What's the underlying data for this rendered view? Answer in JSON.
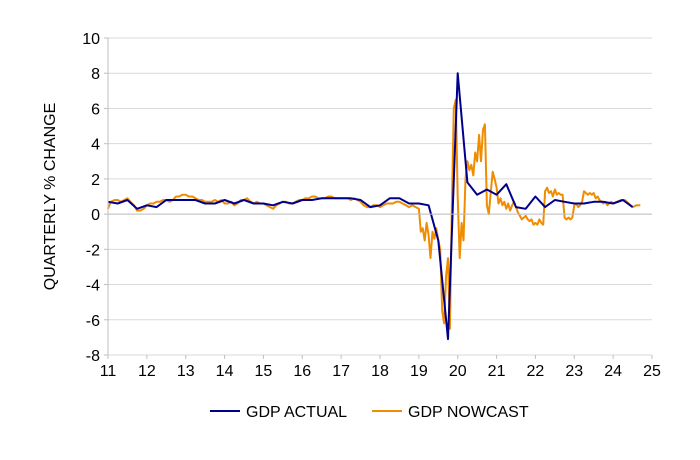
{
  "chart_data": {
    "type": "line",
    "title": "",
    "xlabel": "",
    "ylabel": "QUARTERLY % CHANGE",
    "xlim": [
      11,
      25
    ],
    "ylim": [
      -8,
      10
    ],
    "xticks": [
      11,
      12,
      13,
      14,
      15,
      16,
      17,
      18,
      19,
      20,
      21,
      22,
      23,
      24,
      25
    ],
    "yticks": [
      -8,
      -6,
      -4,
      -2,
      0,
      2,
      4,
      6,
      8,
      10
    ],
    "xtick_labels": [
      "11",
      "12",
      "13",
      "14",
      "15",
      "16",
      "17",
      "18",
      "19",
      "20",
      "21",
      "22",
      "23",
      "24",
      "25"
    ],
    "ytick_labels": [
      "-8",
      "-6",
      "-4",
      "-2",
      "0",
      "2",
      "4",
      "6",
      "8",
      "10"
    ],
    "grid": "horizontal",
    "legend_position": "bottom",
    "series": [
      {
        "name": "GDP ACTUAL",
        "color": "#00008b",
        "points": [
          [
            11.0,
            0.7
          ],
          [
            11.25,
            0.6
          ],
          [
            11.5,
            0.8
          ],
          [
            11.75,
            0.3
          ],
          [
            12.0,
            0.5
          ],
          [
            12.25,
            0.4
          ],
          [
            12.5,
            0.8
          ],
          [
            12.75,
            0.8
          ],
          [
            13.0,
            0.8
          ],
          [
            13.25,
            0.8
          ],
          [
            13.5,
            0.6
          ],
          [
            13.75,
            0.6
          ],
          [
            14.0,
            0.8
          ],
          [
            14.25,
            0.6
          ],
          [
            14.5,
            0.8
          ],
          [
            14.75,
            0.6
          ],
          [
            15.0,
            0.6
          ],
          [
            15.25,
            0.5
          ],
          [
            15.5,
            0.7
          ],
          [
            15.75,
            0.6
          ],
          [
            16.0,
            0.8
          ],
          [
            16.25,
            0.8
          ],
          [
            16.5,
            0.9
          ],
          [
            16.75,
            0.9
          ],
          [
            17.0,
            0.9
          ],
          [
            17.25,
            0.9
          ],
          [
            17.5,
            0.8
          ],
          [
            17.75,
            0.4
          ],
          [
            18.0,
            0.5
          ],
          [
            18.25,
            0.9
          ],
          [
            18.5,
            0.9
          ],
          [
            18.75,
            0.6
          ],
          [
            19.0,
            0.6
          ],
          [
            19.25,
            0.5
          ],
          [
            19.5,
            -1.5
          ],
          [
            19.75,
            -7.1
          ],
          [
            20.0,
            8.0
          ],
          [
            20.25,
            1.8
          ],
          [
            20.5,
            1.1
          ],
          [
            20.75,
            1.4
          ],
          [
            21.0,
            1.1
          ],
          [
            21.25,
            1.7
          ],
          [
            21.5,
            0.4
          ],
          [
            21.75,
            0.3
          ],
          [
            22.0,
            1.0
          ],
          [
            22.25,
            0.4
          ],
          [
            22.5,
            0.8
          ],
          [
            22.75,
            0.7
          ],
          [
            23.0,
            0.6
          ],
          [
            23.25,
            0.6
          ],
          [
            23.5,
            0.7
          ],
          [
            23.75,
            0.7
          ],
          [
            24.0,
            0.6
          ],
          [
            24.25,
            0.8
          ],
          [
            24.5,
            0.4
          ]
        ]
      },
      {
        "name": "GDP NOWCAST",
        "color": "#f08c00",
        "points": [
          [
            11.0,
            0.3
          ],
          [
            11.07,
            0.7
          ],
          [
            11.17,
            0.8
          ],
          [
            11.25,
            0.8
          ],
          [
            11.33,
            0.7
          ],
          [
            11.42,
            0.8
          ],
          [
            11.5,
            0.9
          ],
          [
            11.58,
            0.7
          ],
          [
            11.67,
            0.5
          ],
          [
            11.75,
            0.2
          ],
          [
            11.83,
            0.2
          ],
          [
            11.92,
            0.3
          ],
          [
            12.0,
            0.5
          ],
          [
            12.08,
            0.6
          ],
          [
            12.17,
            0.6
          ],
          [
            12.25,
            0.7
          ],
          [
            12.33,
            0.7
          ],
          [
            12.42,
            0.8
          ],
          [
            12.5,
            0.8
          ],
          [
            12.58,
            0.7
          ],
          [
            12.67,
            0.8
          ],
          [
            12.75,
            1.0
          ],
          [
            12.83,
            1.0
          ],
          [
            12.92,
            1.1
          ],
          [
            13.0,
            1.1
          ],
          [
            13.08,
            1.0
          ],
          [
            13.17,
            1.0
          ],
          [
            13.25,
            0.9
          ],
          [
            13.33,
            0.8
          ],
          [
            13.42,
            0.8
          ],
          [
            13.5,
            0.7
          ],
          [
            13.58,
            0.7
          ],
          [
            13.67,
            0.7
          ],
          [
            13.75,
            0.8
          ],
          [
            13.83,
            0.7
          ],
          [
            13.92,
            0.8
          ],
          [
            14.0,
            0.6
          ],
          [
            14.08,
            0.6
          ],
          [
            14.17,
            0.7
          ],
          [
            14.25,
            0.5
          ],
          [
            14.33,
            0.6
          ],
          [
            14.42,
            0.8
          ],
          [
            14.5,
            0.8
          ],
          [
            14.58,
            0.9
          ],
          [
            14.67,
            0.7
          ],
          [
            14.75,
            0.6
          ],
          [
            14.83,
            0.7
          ],
          [
            14.92,
            0.6
          ],
          [
            15.0,
            0.6
          ],
          [
            15.08,
            0.5
          ],
          [
            15.17,
            0.4
          ],
          [
            15.25,
            0.3
          ],
          [
            15.33,
            0.5
          ],
          [
            15.42,
            0.6
          ],
          [
            15.5,
            0.7
          ],
          [
            15.58,
            0.7
          ],
          [
            15.67,
            0.6
          ],
          [
            15.75,
            0.6
          ],
          [
            15.83,
            0.7
          ],
          [
            15.92,
            0.8
          ],
          [
            16.0,
            0.8
          ],
          [
            16.08,
            0.9
          ],
          [
            16.17,
            0.9
          ],
          [
            16.25,
            1.0
          ],
          [
            16.33,
            1.0
          ],
          [
            16.42,
            0.9
          ],
          [
            16.5,
            0.9
          ],
          [
            16.58,
            0.9
          ],
          [
            16.67,
            1.0
          ],
          [
            16.75,
            1.0
          ],
          [
            16.83,
            0.9
          ],
          [
            16.92,
            0.9
          ],
          [
            17.0,
            0.9
          ],
          [
            17.08,
            0.9
          ],
          [
            17.17,
            0.9
          ],
          [
            17.25,
            0.8
          ],
          [
            17.33,
            0.9
          ],
          [
            17.42,
            0.8
          ],
          [
            17.5,
            0.7
          ],
          [
            17.58,
            0.5
          ],
          [
            17.67,
            0.4
          ],
          [
            17.75,
            0.4
          ],
          [
            17.83,
            0.5
          ],
          [
            17.92,
            0.5
          ],
          [
            18.0,
            0.4
          ],
          [
            18.08,
            0.5
          ],
          [
            18.17,
            0.6
          ],
          [
            18.25,
            0.6
          ],
          [
            18.33,
            0.6
          ],
          [
            18.42,
            0.7
          ],
          [
            18.5,
            0.7
          ],
          [
            18.58,
            0.6
          ],
          [
            18.67,
            0.5
          ],
          [
            18.75,
            0.4
          ],
          [
            18.83,
            0.5
          ],
          [
            18.92,
            0.4
          ],
          [
            19.0,
            0.3
          ],
          [
            19.05,
            -1.0
          ],
          [
            19.1,
            -0.8
          ],
          [
            19.15,
            -1.5
          ],
          [
            19.2,
            -0.5
          ],
          [
            19.25,
            -1.2
          ],
          [
            19.3,
            -2.5
          ],
          [
            19.35,
            -1.0
          ],
          [
            19.4,
            -1.4
          ],
          [
            19.45,
            -0.8
          ],
          [
            19.5,
            -1.5
          ],
          [
            19.55,
            -2.0
          ],
          [
            19.6,
            -5.5
          ],
          [
            19.65,
            -6.2
          ],
          [
            19.7,
            -3.5
          ],
          [
            19.75,
            -2.5
          ],
          [
            19.8,
            -6.5
          ],
          [
            19.85,
            0.5
          ],
          [
            19.9,
            6.0
          ],
          [
            19.95,
            6.5
          ],
          [
            20.0,
            1.0
          ],
          [
            20.05,
            -2.5
          ],
          [
            20.1,
            -0.5
          ],
          [
            20.15,
            -1.5
          ],
          [
            20.2,
            2.0
          ],
          [
            20.25,
            3.0
          ],
          [
            20.3,
            2.5
          ],
          [
            20.35,
            2.8
          ],
          [
            20.4,
            2.2
          ],
          [
            20.45,
            3.5
          ],
          [
            20.5,
            3.0
          ],
          [
            20.55,
            4.5
          ],
          [
            20.6,
            3.0
          ],
          [
            20.65,
            4.8
          ],
          [
            20.7,
            5.1
          ],
          [
            20.75,
            0.5
          ],
          [
            20.8,
            0.0
          ],
          [
            20.85,
            1.2
          ],
          [
            20.9,
            2.4
          ],
          [
            20.95,
            2.0
          ],
          [
            21.0,
            1.5
          ],
          [
            21.05,
            0.6
          ],
          [
            21.1,
            0.9
          ],
          [
            21.15,
            0.5
          ],
          [
            21.2,
            0.7
          ],
          [
            21.25,
            0.3
          ],
          [
            21.3,
            0.6
          ],
          [
            21.35,
            0.2
          ],
          [
            21.4,
            0.5
          ],
          [
            21.45,
            0.7
          ],
          [
            21.5,
            0.4
          ],
          [
            21.55,
            0.1
          ],
          [
            21.6,
            -0.1
          ],
          [
            21.65,
            -0.3
          ],
          [
            21.7,
            -0.2
          ],
          [
            21.75,
            -0.1
          ],
          [
            21.8,
            -0.3
          ],
          [
            21.85,
            -0.4
          ],
          [
            21.9,
            -0.3
          ],
          [
            21.95,
            -0.6
          ],
          [
            22.0,
            -0.5
          ],
          [
            22.05,
            -0.6
          ],
          [
            22.1,
            -0.3
          ],
          [
            22.15,
            -0.5
          ],
          [
            22.2,
            -0.6
          ],
          [
            22.25,
            1.3
          ],
          [
            22.3,
            1.5
          ],
          [
            22.35,
            1.2
          ],
          [
            22.4,
            1.3
          ],
          [
            22.45,
            1.0
          ],
          [
            22.5,
            1.4
          ],
          [
            22.55,
            1.1
          ],
          [
            22.6,
            1.2
          ],
          [
            22.65,
            1.1
          ],
          [
            22.7,
            1.1
          ],
          [
            22.75,
            -0.2
          ],
          [
            22.8,
            -0.3
          ],
          [
            22.85,
            -0.2
          ],
          [
            22.9,
            -0.3
          ],
          [
            22.95,
            -0.2
          ],
          [
            23.0,
            0.5
          ],
          [
            23.05,
            0.6
          ],
          [
            23.1,
            0.4
          ],
          [
            23.15,
            0.5
          ],
          [
            23.2,
            0.7
          ],
          [
            23.25,
            1.3
          ],
          [
            23.3,
            1.2
          ],
          [
            23.35,
            1.1
          ],
          [
            23.4,
            1.2
          ],
          [
            23.45,
            1.1
          ],
          [
            23.5,
            1.2
          ],
          [
            23.55,
            0.9
          ],
          [
            23.6,
            1.0
          ],
          [
            23.65,
            0.8
          ],
          [
            23.7,
            0.7
          ],
          [
            23.75,
            0.6
          ],
          [
            23.8,
            0.7
          ],
          [
            23.85,
            0.5
          ],
          [
            23.9,
            0.6
          ],
          [
            23.95,
            0.7
          ],
          [
            24.0,
            0.6
          ],
          [
            24.1,
            0.7
          ],
          [
            24.2,
            0.8
          ],
          [
            24.3,
            0.8
          ],
          [
            24.4,
            0.6
          ],
          [
            24.5,
            0.4
          ],
          [
            24.6,
            0.5
          ],
          [
            24.7,
            0.5
          ]
        ]
      }
    ]
  }
}
